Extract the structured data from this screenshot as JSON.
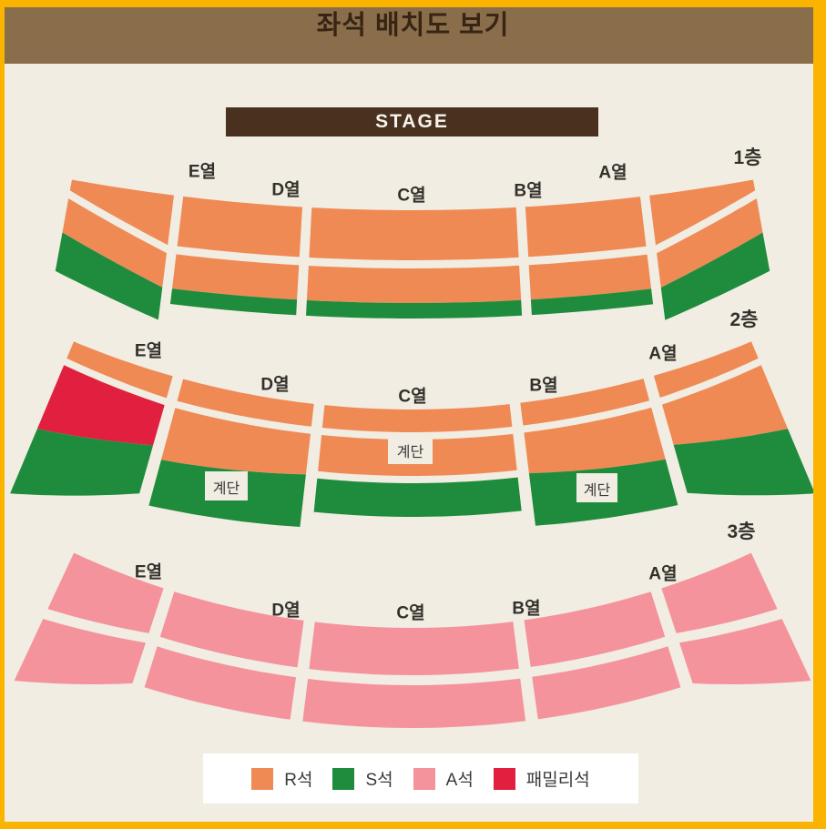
{
  "title": "좌석 배치도 보기",
  "stage_label": "STAGE",
  "stairs_label": "계단",
  "floors": [
    {
      "label": "1층",
      "rows": [
        "E열",
        "D열",
        "C열",
        "B열",
        "A열"
      ]
    },
    {
      "label": "2층",
      "rows": [
        "E열",
        "D열",
        "C열",
        "B열",
        "A열"
      ]
    },
    {
      "label": "3층",
      "rows": [
        "E열",
        "D열",
        "C열",
        "B열",
        "A열"
      ]
    }
  ],
  "legend": [
    {
      "label": "R석",
      "color": "#F08A55"
    },
    {
      "label": "S석",
      "color": "#1E8C3C"
    },
    {
      "label": "A석",
      "color": "#F4939B"
    },
    {
      "label": "패밀리석",
      "color": "#E0203E"
    }
  ],
  "colors": {
    "r_seat": "#F08A55",
    "s_seat": "#1E8C3C",
    "a_seat": "#F4939B",
    "family_seat": "#E0203E",
    "frame": "#FAB400",
    "header": "#8A6D4B",
    "stage": "#49301F",
    "background": "#F1EDE2"
  }
}
